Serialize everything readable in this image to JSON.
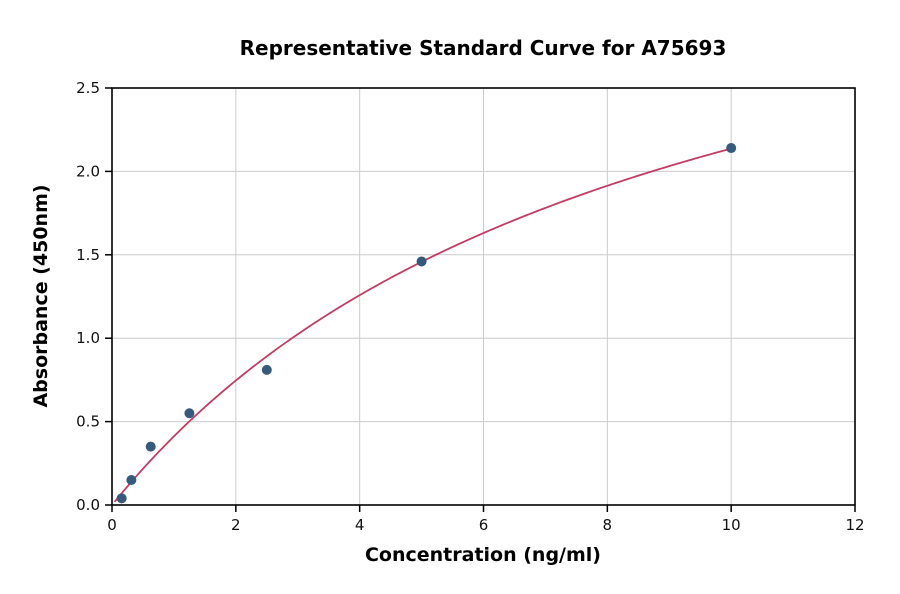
{
  "figure": {
    "background": "#ffffff"
  },
  "chart_data": {
    "type": "scatter",
    "title": "Representative Standard Curve for A75693",
    "xlabel": "Concentration (ng/ml)",
    "ylabel": "Absorbance (450nm)",
    "xlim": [
      0,
      12
    ],
    "ylim": [
      0,
      2.5
    ],
    "x_ticks": [
      0,
      2,
      4,
      6,
      8,
      10,
      12
    ],
    "x_tick_labels": [
      "0",
      "2",
      "4",
      "6",
      "8",
      "10",
      "12"
    ],
    "y_ticks": [
      0,
      0.5,
      1.0,
      1.5,
      2.0,
      2.5
    ],
    "y_tick_labels": [
      "0.0",
      "0.5",
      "1.0",
      "1.5",
      "2.0",
      "2.5"
    ],
    "grid": true,
    "grid_color": "#cccccc",
    "axis_color": "#000000",
    "point_color": "#365a7d",
    "curve_color": "#c43b63",
    "points": [
      {
        "x": 0.156,
        "y": 0.04
      },
      {
        "x": 0.313,
        "y": 0.15
      },
      {
        "x": 0.625,
        "y": 0.35
      },
      {
        "x": 1.25,
        "y": 0.55
      },
      {
        "x": 2.5,
        "y": 0.81
      },
      {
        "x": 5.0,
        "y": 1.46
      },
      {
        "x": 10.0,
        "y": 2.14
      }
    ],
    "fit_curve": {
      "model": "y = a*x / (b + x)",
      "a": 4.0,
      "b": 8.72,
      "x_start": 0.05,
      "x_end": 10.0
    }
  }
}
